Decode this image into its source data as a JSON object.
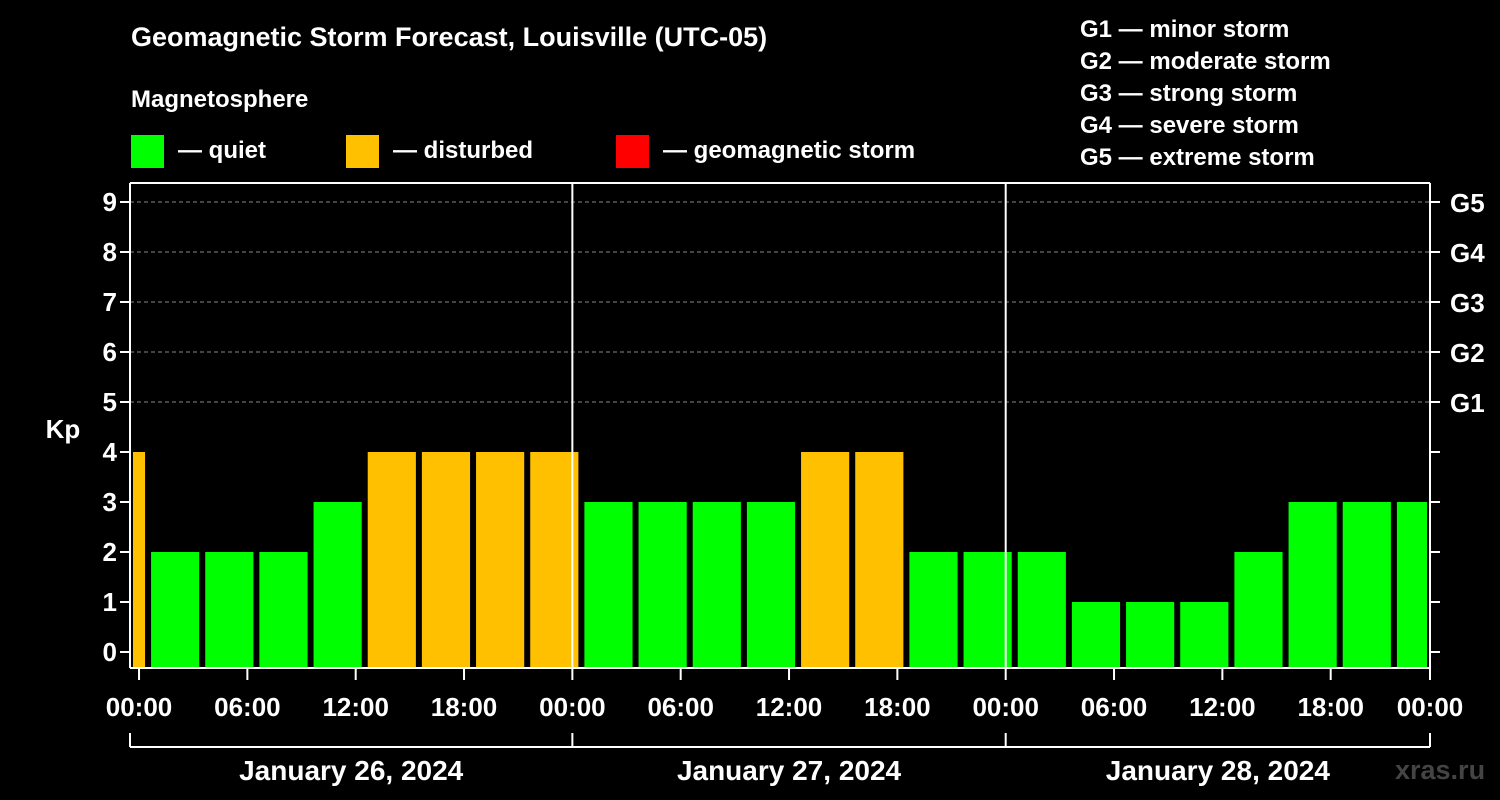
{
  "chart_data": {
    "type": "bar",
    "title": "Geomagnetic Storm Forecast, Louisville (UTC-05)",
    "subtitle": "Magnetosphere",
    "ylabel": "Kp",
    "xlabel": "",
    "ylim": [
      0,
      9
    ],
    "yticks": [
      "0",
      "1",
      "2",
      "3",
      "4",
      "5",
      "6",
      "7",
      "8",
      "9"
    ],
    "right_ticks": [
      {
        "kp": 5,
        "label": "G1"
      },
      {
        "kp": 6,
        "label": "G2"
      },
      {
        "kp": 7,
        "label": "G3"
      },
      {
        "kp": 8,
        "label": "G4"
      },
      {
        "kp": 9,
        "label": "G5"
      }
    ],
    "time_range_hours": [
      -0.5,
      71.5
    ],
    "xtick_labels": [
      "00:00",
      "06:00",
      "12:00",
      "18:00",
      "00:00",
      "06:00",
      "12:00",
      "18:00",
      "00:00",
      "06:00",
      "12:00",
      "18:00",
      "00:00"
    ],
    "xtick_hours": [
      0,
      6,
      12,
      18,
      24,
      30,
      36,
      42,
      48,
      54,
      60,
      66,
      72
    ],
    "day_boundary_hours": [
      24,
      48
    ],
    "days": [
      {
        "label": "January 26, 2024",
        "start_hour": -0.5,
        "end_hour": 24
      },
      {
        "label": "January 27, 2024",
        "start_hour": 24,
        "end_hour": 48
      },
      {
        "label": "January 28, 2024",
        "start_hour": 48,
        "end_hour": 71.5
      }
    ],
    "bars": [
      {
        "start_hour": -0.5,
        "end_hour": 0.5,
        "kp": 4
      },
      {
        "start_hour": 0.5,
        "end_hour": 3.5,
        "kp": 2
      },
      {
        "start_hour": 3.5,
        "end_hour": 6.5,
        "kp": 2
      },
      {
        "start_hour": 6.5,
        "end_hour": 9.5,
        "kp": 2
      },
      {
        "start_hour": 9.5,
        "end_hour": 12.5,
        "kp": 3
      },
      {
        "start_hour": 12.5,
        "end_hour": 15.5,
        "kp": 4
      },
      {
        "start_hour": 15.5,
        "end_hour": 18.5,
        "kp": 4
      },
      {
        "start_hour": 18.5,
        "end_hour": 21.5,
        "kp": 4
      },
      {
        "start_hour": 21.5,
        "end_hour": 24.5,
        "kp": 4
      },
      {
        "start_hour": 24.5,
        "end_hour": 27.5,
        "kp": 3
      },
      {
        "start_hour": 27.5,
        "end_hour": 30.5,
        "kp": 3
      },
      {
        "start_hour": 30.5,
        "end_hour": 33.5,
        "kp": 3
      },
      {
        "start_hour": 33.5,
        "end_hour": 36.5,
        "kp": 3
      },
      {
        "start_hour": 36.5,
        "end_hour": 39.5,
        "kp": 4
      },
      {
        "start_hour": 39.5,
        "end_hour": 42.5,
        "kp": 4
      },
      {
        "start_hour": 42.5,
        "end_hour": 45.5,
        "kp": 2
      },
      {
        "start_hour": 45.5,
        "end_hour": 48.5,
        "kp": 2
      },
      {
        "start_hour": 48.5,
        "end_hour": 51.5,
        "kp": 2
      },
      {
        "start_hour": 51.5,
        "end_hour": 54.5,
        "kp": 1
      },
      {
        "start_hour": 54.5,
        "end_hour": 57.5,
        "kp": 1
      },
      {
        "start_hour": 57.5,
        "end_hour": 60.5,
        "kp": 1
      },
      {
        "start_hour": 60.5,
        "end_hour": 63.5,
        "kp": 2
      },
      {
        "start_hour": 63.5,
        "end_hour": 66.5,
        "kp": 3
      },
      {
        "start_hour": 66.5,
        "end_hour": 69.5,
        "kp": 3
      },
      {
        "start_hour": 69.5,
        "end_hour": 71.5,
        "kp": 3
      }
    ],
    "legend": [
      {
        "label": "— quiet",
        "color": "#00ff00"
      },
      {
        "label": "— disturbed",
        "color": "#ffc000"
      },
      {
        "label": "— geomagnetic storm",
        "color": "#ff0000"
      }
    ],
    "storm_scale": [
      "G1 — minor storm",
      "G2 — moderate storm",
      "G3 — strong storm",
      "G4 — severe storm",
      "G5 — extreme storm"
    ],
    "grid": true
  },
  "watermark": "xras.ru"
}
